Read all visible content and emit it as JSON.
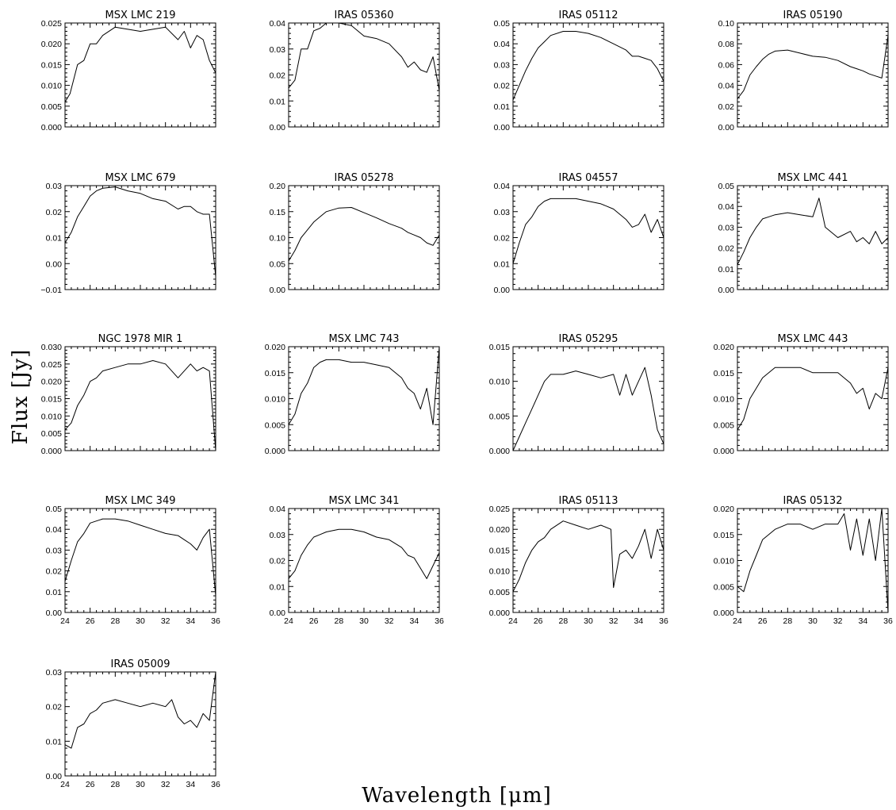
{
  "figure": {
    "xlabel": "Wavelength [μm]",
    "ylabel": "Flux [Jy]"
  },
  "chart_data": [
    {
      "type": "line",
      "title": "MSX LMC 219",
      "xlim": [
        24,
        36
      ],
      "ylim": [
        0,
        0.025
      ],
      "yticks": [
        "0.000",
        "0.005",
        "0.010",
        "0.015",
        "0.020",
        "0.025"
      ],
      "xticks": [],
      "series": [
        {
          "x": [
            24,
            24.4,
            25,
            25.5,
            26,
            26.5,
            27,
            28,
            29,
            30,
            31,
            32,
            33,
            33.5,
            34,
            34.5,
            35,
            35.5,
            36
          ],
          "y": [
            0.006,
            0.008,
            0.015,
            0.016,
            0.02,
            0.02,
            0.022,
            0.024,
            0.0235,
            0.023,
            0.0235,
            0.024,
            0.021,
            0.023,
            0.019,
            0.022,
            0.021,
            0.016,
            0.013
          ]
        }
      ]
    },
    {
      "type": "line",
      "title": "IRAS 05360",
      "xlim": [
        24,
        36
      ],
      "ylim": [
        0,
        0.04
      ],
      "yticks": [
        "0.00",
        "0.01",
        "0.02",
        "0.03",
        "0.04"
      ],
      "xticks": [],
      "series": [
        {
          "x": [
            24,
            24.5,
            25,
            25.5,
            26,
            26.5,
            27,
            28,
            29,
            30,
            31,
            32,
            33,
            33.5,
            34,
            34.5,
            35,
            35.5,
            36
          ],
          "y": [
            0.015,
            0.018,
            0.03,
            0.03,
            0.037,
            0.038,
            0.04,
            0.04,
            0.039,
            0.035,
            0.034,
            0.032,
            0.027,
            0.023,
            0.025,
            0.022,
            0.021,
            0.027,
            0.014
          ]
        }
      ]
    },
    {
      "type": "line",
      "title": "IRAS 05112",
      "xlim": [
        24,
        36
      ],
      "ylim": [
        0,
        0.05
      ],
      "yticks": [
        "0.00",
        "0.01",
        "0.02",
        "0.03",
        "0.04",
        "0.05"
      ],
      "xticks": [],
      "series": [
        {
          "x": [
            24,
            24.5,
            25,
            25.5,
            26,
            26.5,
            27,
            28,
            29,
            30,
            31,
            32,
            33,
            33.5,
            34,
            34.5,
            35,
            35.5,
            36
          ],
          "y": [
            0.013,
            0.02,
            0.027,
            0.033,
            0.038,
            0.041,
            0.044,
            0.046,
            0.046,
            0.045,
            0.043,
            0.04,
            0.037,
            0.034,
            0.034,
            0.033,
            0.032,
            0.028,
            0.022
          ]
        }
      ]
    },
    {
      "type": "line",
      "title": "IRAS 05190",
      "xlim": [
        24,
        36
      ],
      "ylim": [
        0,
        0.1
      ],
      "yticks": [
        "0.00",
        "0.02",
        "0.04",
        "0.06",
        "0.08",
        "0.10"
      ],
      "xticks": [],
      "series": [
        {
          "x": [
            24,
            24.5,
            25,
            25.5,
            26,
            26.5,
            27,
            28,
            29,
            30,
            31,
            32,
            33,
            33.5,
            34,
            34.5,
            35,
            35.5,
            36
          ],
          "y": [
            0.027,
            0.035,
            0.05,
            0.058,
            0.065,
            0.07,
            0.073,
            0.074,
            0.071,
            0.068,
            0.067,
            0.064,
            0.058,
            0.056,
            0.054,
            0.051,
            0.049,
            0.047,
            0.088
          ]
        }
      ]
    },
    {
      "type": "line",
      "title": "MSX LMC 679",
      "xlim": [
        24,
        36
      ],
      "ylim": [
        -0.01,
        0.03
      ],
      "yticks": [
        "−0.01",
        "0.00",
        "0.01",
        "0.02",
        "0.03"
      ],
      "xticks": [],
      "series": [
        {
          "x": [
            24,
            24.5,
            25,
            25.5,
            26,
            26.5,
            27,
            28,
            29,
            30,
            31,
            32,
            33,
            33.5,
            34,
            34.5,
            35,
            35.5,
            36
          ],
          "y": [
            0.008,
            0.012,
            0.018,
            0.022,
            0.026,
            0.028,
            0.029,
            0.0295,
            0.028,
            0.027,
            0.025,
            0.024,
            0.021,
            0.022,
            0.022,
            0.02,
            0.019,
            0.019,
            -0.005
          ]
        }
      ]
    },
    {
      "type": "line",
      "title": "IRAS 05278",
      "xlim": [
        24,
        36
      ],
      "ylim": [
        0,
        0.2
      ],
      "yticks": [
        "0.00",
        "0.05",
        "0.10",
        "0.15",
        "0.20"
      ],
      "xticks": [],
      "series": [
        {
          "x": [
            24,
            24.5,
            25,
            25.5,
            26,
            26.5,
            27,
            28,
            29,
            30,
            31,
            32,
            33,
            33.5,
            34,
            34.5,
            35,
            35.5,
            36
          ],
          "y": [
            0.055,
            0.075,
            0.1,
            0.115,
            0.13,
            0.14,
            0.15,
            0.157,
            0.158,
            0.148,
            0.138,
            0.127,
            0.118,
            0.11,
            0.105,
            0.1,
            0.09,
            0.085,
            0.105
          ]
        }
      ]
    },
    {
      "type": "line",
      "title": "IRAS 04557",
      "xlim": [
        24,
        36
      ],
      "ylim": [
        0,
        0.04
      ],
      "yticks": [
        "0.00",
        "0.01",
        "0.02",
        "0.03",
        "0.04"
      ],
      "xticks": [],
      "series": [
        {
          "x": [
            24,
            24.5,
            25,
            25.5,
            26,
            26.5,
            27,
            28,
            29,
            30,
            31,
            32,
            33,
            33.5,
            34,
            34.5,
            35,
            35.5,
            36
          ],
          "y": [
            0.01,
            0.018,
            0.025,
            0.028,
            0.032,
            0.034,
            0.035,
            0.035,
            0.035,
            0.034,
            0.033,
            0.031,
            0.027,
            0.024,
            0.025,
            0.029,
            0.022,
            0.027,
            0.02
          ]
        }
      ]
    },
    {
      "type": "line",
      "title": "MSX LMC 441",
      "xlim": [
        24,
        36
      ],
      "ylim": [
        0,
        0.05
      ],
      "yticks": [
        "0.00",
        "0.01",
        "0.02",
        "0.03",
        "0.04",
        "0.05"
      ],
      "xticks": [],
      "series": [
        {
          "x": [
            24,
            24.5,
            25,
            25.5,
            26,
            26.5,
            27,
            28,
            29,
            30,
            30.5,
            31,
            32,
            33,
            33.5,
            34,
            34.5,
            35,
            35.5,
            36
          ],
          "y": [
            0.012,
            0.018,
            0.025,
            0.03,
            0.034,
            0.035,
            0.036,
            0.037,
            0.036,
            0.035,
            0.044,
            0.03,
            0.025,
            0.028,
            0.023,
            0.025,
            0.022,
            0.028,
            0.022,
            0.025
          ]
        }
      ]
    },
    {
      "type": "line",
      "title": "NGC 1978 MIR 1",
      "xlim": [
        24,
        36
      ],
      "ylim": [
        0,
        0.03
      ],
      "yticks": [
        "0.000",
        "0.005",
        "0.010",
        "0.015",
        "0.020",
        "0.025",
        "0.030"
      ],
      "xticks": [],
      "series": [
        {
          "x": [
            24,
            24.5,
            25,
            25.5,
            26,
            26.5,
            27,
            28,
            29,
            30,
            31,
            32,
            33,
            33.5,
            34,
            34.5,
            35,
            35.5,
            36
          ],
          "y": [
            0.006,
            0.008,
            0.013,
            0.016,
            0.02,
            0.021,
            0.023,
            0.024,
            0.025,
            0.025,
            0.026,
            0.025,
            0.021,
            0.023,
            0.025,
            0.023,
            0.024,
            0.023,
            0
          ]
        }
      ]
    },
    {
      "type": "line",
      "title": "MSX LMC 743",
      "xlim": [
        24,
        36
      ],
      "ylim": [
        0,
        0.02
      ],
      "yticks": [
        "0.000",
        "0.005",
        "0.010",
        "0.015",
        "0.020"
      ],
      "xticks": [],
      "series": [
        {
          "x": [
            24,
            24.5,
            25,
            25.5,
            26,
            26.5,
            27,
            28,
            29,
            30,
            31,
            32,
            33,
            33.5,
            34,
            34.5,
            35,
            35.5,
            36
          ],
          "y": [
            0.005,
            0.007,
            0.011,
            0.013,
            0.016,
            0.017,
            0.0175,
            0.0175,
            0.017,
            0.017,
            0.0165,
            0.016,
            0.014,
            0.012,
            0.011,
            0.008,
            0.012,
            0.005,
            0.02
          ]
        }
      ]
    },
    {
      "type": "line",
      "title": "IRAS 05295",
      "xlim": [
        24,
        36
      ],
      "ylim": [
        0,
        0.015
      ],
      "yticks": [
        "0.000",
        "0.005",
        "0.010",
        "0.015"
      ],
      "xticks": [],
      "series": [
        {
          "x": [
            24,
            24.5,
            25,
            25.5,
            26,
            26.5,
            27,
            28,
            29,
            30,
            31,
            32,
            32.5,
            33,
            33.5,
            34,
            34.5,
            35,
            35.5,
            36
          ],
          "y": [
            0,
            0.002,
            0.004,
            0.006,
            0.008,
            0.01,
            0.011,
            0.011,
            0.0115,
            0.011,
            0.0105,
            0.011,
            0.008,
            0.011,
            0.008,
            0.01,
            0.012,
            0.008,
            0.003,
            0.001
          ]
        }
      ]
    },
    {
      "type": "line",
      "title": "MSX LMC 443",
      "xlim": [
        24,
        36
      ],
      "ylim": [
        0,
        0.02
      ],
      "yticks": [
        "0.000",
        "0.005",
        "0.010",
        "0.015",
        "0.020"
      ],
      "xticks": [],
      "series": [
        {
          "x": [
            24,
            24.5,
            25,
            25.5,
            26,
            26.5,
            27,
            28,
            29,
            30,
            31,
            32,
            33,
            33.5,
            34,
            34.5,
            35,
            35.5,
            36
          ],
          "y": [
            0.004,
            0.006,
            0.01,
            0.012,
            0.014,
            0.015,
            0.016,
            0.016,
            0.016,
            0.015,
            0.015,
            0.015,
            0.013,
            0.011,
            0.012,
            0.008,
            0.011,
            0.01,
            0.016
          ]
        }
      ]
    },
    {
      "type": "line",
      "title": "MSX LMC 349",
      "xlim": [
        24,
        36
      ],
      "ylim": [
        0,
        0.05
      ],
      "yticks": [
        "0.00",
        "0.01",
        "0.02",
        "0.03",
        "0.04",
        "0.05"
      ],
      "xticks": [
        "24",
        "26",
        "28",
        "30",
        "32",
        "34",
        "36"
      ],
      "series": [
        {
          "x": [
            24,
            24.5,
            25,
            25.5,
            26,
            26.5,
            27,
            28,
            29,
            30,
            31,
            32,
            33,
            33.5,
            34,
            34.5,
            35,
            35.5,
            36
          ],
          "y": [
            0.015,
            0.025,
            0.034,
            0.038,
            0.043,
            0.044,
            0.045,
            0.045,
            0.044,
            0.042,
            0.04,
            0.038,
            0.037,
            0.035,
            0.033,
            0.03,
            0.036,
            0.04,
            0.008
          ]
        }
      ]
    },
    {
      "type": "line",
      "title": "MSX LMC 341",
      "xlim": [
        24,
        36
      ],
      "ylim": [
        0,
        0.04
      ],
      "yticks": [
        "0.00",
        "0.01",
        "0.02",
        "0.03",
        "0.04"
      ],
      "xticks": [
        "24",
        "26",
        "28",
        "30",
        "32",
        "34",
        "36"
      ],
      "series": [
        {
          "x": [
            24,
            24.5,
            25,
            25.5,
            26,
            26.5,
            27,
            28,
            29,
            30,
            31,
            32,
            33,
            33.5,
            34,
            34.5,
            35,
            35.5,
            36
          ],
          "y": [
            0.013,
            0.016,
            0.022,
            0.026,
            0.029,
            0.03,
            0.031,
            0.032,
            0.032,
            0.031,
            0.029,
            0.028,
            0.025,
            0.022,
            0.021,
            0.017,
            0.013,
            0.018,
            0.023
          ]
        }
      ]
    },
    {
      "type": "line",
      "title": "IRAS 05113",
      "xlim": [
        24,
        36
      ],
      "ylim": [
        0,
        0.025
      ],
      "yticks": [
        "0.000",
        "0.005",
        "0.010",
        "0.015",
        "0.020",
        "0.025"
      ],
      "xticks": [
        "24",
        "26",
        "28",
        "30",
        "32",
        "34",
        "36"
      ],
      "series": [
        {
          "x": [
            24,
            24.5,
            25,
            25.5,
            26,
            26.5,
            27,
            28,
            29,
            30,
            31,
            31.8,
            32,
            32.5,
            33,
            33.5,
            34,
            34.5,
            35,
            35.5,
            36
          ],
          "y": [
            0.005,
            0.008,
            0.012,
            0.015,
            0.017,
            0.018,
            0.02,
            0.022,
            0.021,
            0.02,
            0.021,
            0.02,
            0.006,
            0.014,
            0.015,
            0.013,
            0.016,
            0.02,
            0.013,
            0.02,
            0.015
          ]
        }
      ]
    },
    {
      "type": "line",
      "title": "IRAS 05132",
      "xlim": [
        24,
        36
      ],
      "ylim": [
        0,
        0.02
      ],
      "yticks": [
        "0.000",
        "0.005",
        "0.010",
        "0.015",
        "0.020"
      ],
      "xticks": [
        "24",
        "26",
        "28",
        "30",
        "32",
        "34",
        "36"
      ],
      "series": [
        {
          "x": [
            24,
            24.5,
            25,
            25.5,
            26,
            26.5,
            27,
            28,
            29,
            30,
            31,
            32,
            32.5,
            33,
            33.5,
            34,
            34.5,
            35,
            35.5,
            36
          ],
          "y": [
            0.005,
            0.004,
            0.008,
            0.011,
            0.014,
            0.015,
            0.016,
            0.017,
            0.017,
            0.016,
            0.017,
            0.017,
            0.019,
            0.012,
            0.018,
            0.011,
            0.018,
            0.01,
            0.02,
            0
          ]
        }
      ]
    },
    {
      "type": "line",
      "title": "IRAS 05009",
      "xlim": [
        24,
        36
      ],
      "ylim": [
        0,
        0.03
      ],
      "yticks": [
        "0.00",
        "0.01",
        "0.02",
        "0.03"
      ],
      "xticks": [
        "24",
        "26",
        "28",
        "30",
        "32",
        "34",
        "36"
      ],
      "series": [
        {
          "x": [
            24,
            24.5,
            25,
            25.5,
            26,
            26.5,
            27,
            28,
            29,
            30,
            31,
            32,
            32.5,
            33,
            33.5,
            34,
            34.5,
            35,
            35.5,
            36
          ],
          "y": [
            0.009,
            0.008,
            0.014,
            0.015,
            0.018,
            0.019,
            0.021,
            0.022,
            0.021,
            0.02,
            0.021,
            0.02,
            0.022,
            0.017,
            0.015,
            0.016,
            0.014,
            0.018,
            0.016,
            0.03
          ]
        }
      ]
    }
  ]
}
